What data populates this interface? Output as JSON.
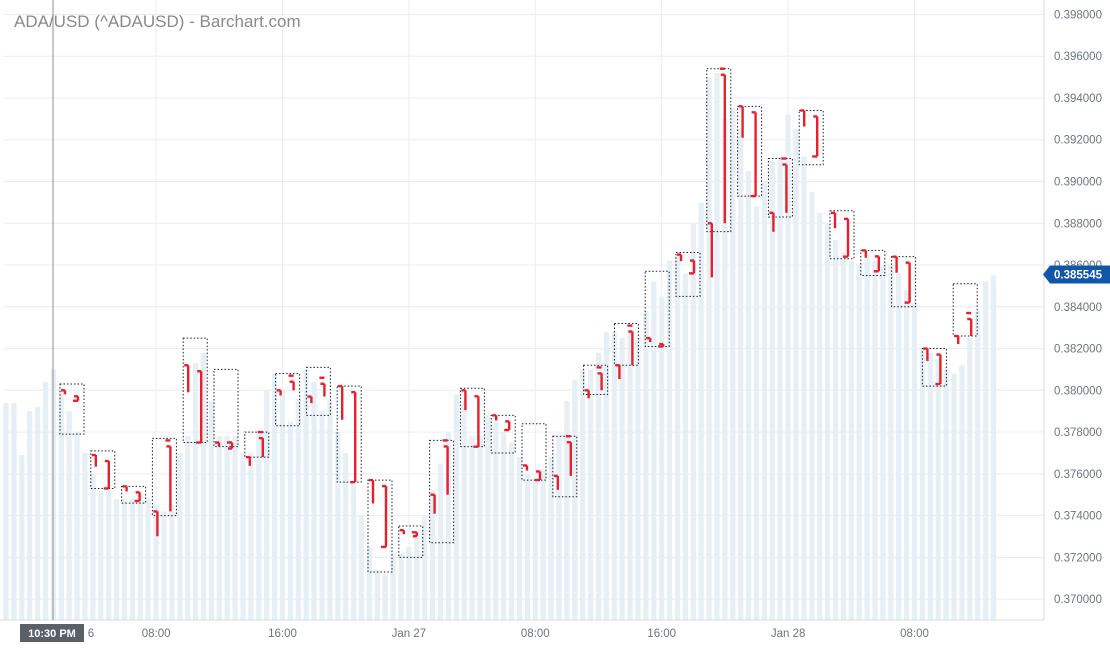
{
  "title": "ADA/USD (^ADAUSD) - Barchart.com",
  "colors": {
    "candle": "#e8202c",
    "box": "#1b2030",
    "grid": "#e9edf1",
    "bars": "#e6eef6",
    "axis_text": "#6d7480",
    "price_badge": "#1256a8",
    "crosshair_badge": "#5b5f66"
  },
  "chart_data": {
    "type": "bar",
    "y_axis": {
      "ticks": [
        "0.398000",
        "0.396000",
        "0.394000",
        "0.392000",
        "0.390000",
        "0.388000",
        "0.386000",
        "0.384000",
        "0.382000",
        "0.380000",
        "0.378000",
        "0.376000",
        "0.374000",
        "0.372000",
        "0.370000"
      ],
      "min": 0.369,
      "max": 0.3985,
      "position": "right"
    },
    "x_axis": {
      "ticks": [
        {
          "label": "08:00",
          "index": 19
        },
        {
          "label": "16:00",
          "index": 35
        },
        {
          "label": "Jan 27",
          "index": 51
        },
        {
          "label": "08:00",
          "index": 67
        },
        {
          "label": "16:00",
          "index": 83
        },
        {
          "label": "Jan 28",
          "index": 99
        },
        {
          "label": "08:00",
          "index": 115
        }
      ],
      "crosshair_label": "10:30 PM",
      "crosshair_index": 4,
      "partial_label": "6"
    },
    "last_price": {
      "label": "0.385545",
      "value": 0.385545
    },
    "background_bars": [
      0.3794,
      0.3794,
      0.3769,
      0.379,
      0.3792,
      0.3804,
      0.381,
      0.38,
      0.379,
      0.378,
      0.377,
      0.376,
      0.3752,
      0.3752,
      0.3748,
      0.3748,
      0.3748,
      0.375,
      0.3748,
      0.3745,
      0.3742,
      0.3745,
      0.377,
      0.3778,
      0.3813,
      0.3818,
      0.3795,
      0.3778,
      0.3778,
      0.3778,
      0.377,
      0.377,
      0.378,
      0.38,
      0.3808,
      0.38,
      0.3785,
      0.3796,
      0.381,
      0.3804,
      0.379,
      0.3795,
      0.378,
      0.377,
      0.3755,
      0.374,
      0.3725,
      0.3714,
      0.3712,
      0.3722,
      0.3722,
      0.3725,
      0.3732,
      0.374,
      0.3752,
      0.3765,
      0.378,
      0.3798,
      0.3795,
      0.3778,
      0.3778,
      0.3788,
      0.3785,
      0.378,
      0.3775,
      0.3768,
      0.376,
      0.3758,
      0.3762,
      0.3768,
      0.3778,
      0.3795,
      0.3805,
      0.381,
      0.381,
      0.3818,
      0.3828,
      0.3828,
      0.3825,
      0.3829,
      0.3825,
      0.3838,
      0.3852,
      0.3845,
      0.3862,
      0.3865,
      0.3856,
      0.388,
      0.389,
      0.395,
      0.3952,
      0.393,
      0.3935,
      0.3925,
      0.3905,
      0.3888,
      0.39,
      0.391,
      0.3912,
      0.3932,
      0.3925,
      0.3912,
      0.3895,
      0.3885,
      0.388,
      0.3872,
      0.3866,
      0.3862,
      0.386,
      0.3865,
      0.3862,
      0.386,
      0.386,
      0.3856,
      0.3848,
      0.3842,
      0.382,
      0.3818,
      0.3815,
      0.381,
      0.3808,
      0.3812,
      0.3825,
      0.3838,
      0.3852,
      0.3855
    ],
    "candles": [
      {
        "open": 0.38,
        "high": 0.3803,
        "low": 0.3779,
        "close": 0.3795
      },
      {
        "open": 0.3769,
        "high": 0.3771,
        "low": 0.3753,
        "close": 0.3753
      },
      {
        "open": 0.3754,
        "high": 0.3754,
        "low": 0.3746,
        "close": 0.3747
      },
      {
        "open": 0.3742,
        "high": 0.3777,
        "low": 0.374,
        "close": 0.3776
      },
      {
        "open": 0.3812,
        "high": 0.3825,
        "low": 0.3775,
        "close": 0.3775
      },
      {
        "open": 0.3775,
        "high": 0.381,
        "low": 0.3773,
        "close": 0.3775
      },
      {
        "open": 0.3768,
        "high": 0.378,
        "low": 0.3768,
        "close": 0.378
      },
      {
        "open": 0.38,
        "high": 0.3808,
        "low": 0.3783,
        "close": 0.3807
      },
      {
        "open": 0.3797,
        "high": 0.3811,
        "low": 0.3788,
        "close": 0.3806
      },
      {
        "open": 0.3802,
        "high": 0.3802,
        "low": 0.3756,
        "close": 0.3756
      },
      {
        "open": 0.3757,
        "high": 0.3757,
        "low": 0.3713,
        "close": 0.3725
      },
      {
        "open": 0.3733,
        "high": 0.3735,
        "low": 0.372,
        "close": 0.3732
      },
      {
        "open": 0.375,
        "high": 0.3776,
        "low": 0.3727,
        "close": 0.3776
      },
      {
        "open": 0.38,
        "high": 0.3801,
        "low": 0.3773,
        "close": 0.3773
      },
      {
        "open": 0.3788,
        "high": 0.3788,
        "low": 0.377,
        "close": 0.3781
      },
      {
        "open": 0.3764,
        "high": 0.3784,
        "low": 0.3757,
        "close": 0.3757
      },
      {
        "open": 0.3759,
        "high": 0.3778,
        "low": 0.3749,
        "close": 0.3778
      },
      {
        "open": 0.38,
        "high": 0.3812,
        "low": 0.3798,
        "close": 0.3811
      },
      {
        "open": 0.3812,
        "high": 0.3832,
        "low": 0.3812,
        "close": 0.3831
      },
      {
        "open": 0.3825,
        "high": 0.3857,
        "low": 0.3821,
        "close": 0.3821
      },
      {
        "open": 0.3865,
        "high": 0.3866,
        "low": 0.3845,
        "close": 0.3856
      },
      {
        "open": 0.388,
        "high": 0.3954,
        "low": 0.3876,
        "close": 0.3954
      },
      {
        "open": 0.3936,
        "high": 0.3936,
        "low": 0.3893,
        "close": 0.3893
      },
      {
        "open": 0.3885,
        "high": 0.3911,
        "low": 0.3883,
        "close": 0.3911
      },
      {
        "open": 0.3934,
        "high": 0.3934,
        "low": 0.3908,
        "close": 0.3912
      },
      {
        "open": 0.3885,
        "high": 0.3886,
        "low": 0.3863,
        "close": 0.3864
      },
      {
        "open": 0.3867,
        "high": 0.3867,
        "low": 0.3855,
        "close": 0.3857
      },
      {
        "open": 0.3864,
        "high": 0.3864,
        "low": 0.384,
        "close": 0.3842
      },
      {
        "open": 0.382,
        "high": 0.382,
        "low": 0.3802,
        "close": 0.3803
      },
      {
        "open": 0.3826,
        "high": 0.3851,
        "low": 0.3826,
        "close": 0.3837
      }
    ]
  }
}
